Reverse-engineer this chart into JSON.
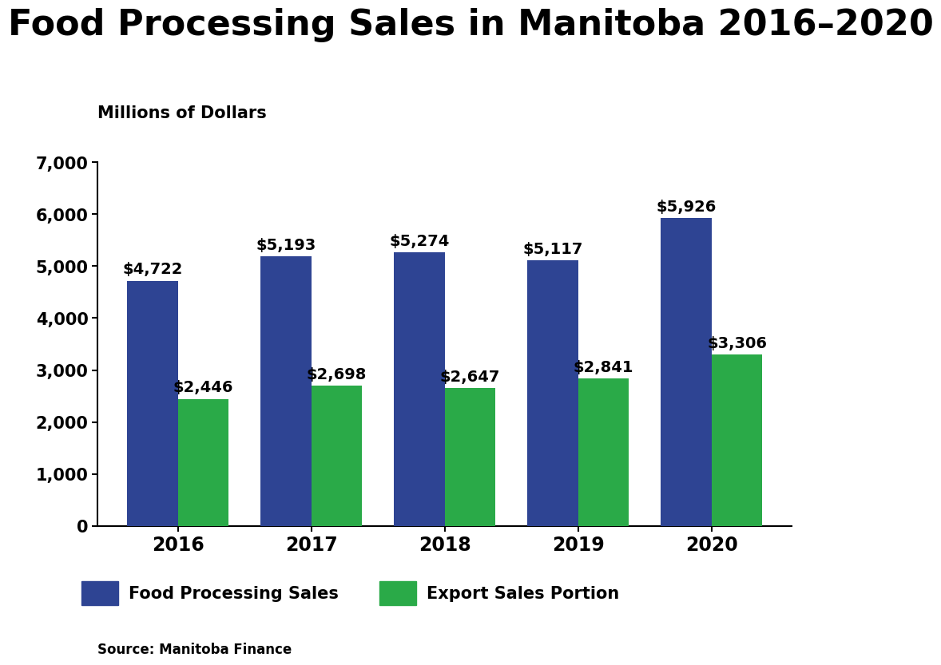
{
  "title": "Food Processing Sales in Manitoba 2016–2020",
  "subtitle": "Millions of Dollars",
  "years": [
    "2016",
    "2017",
    "2018",
    "2019",
    "2020"
  ],
  "food_processing_sales": [
    4722,
    5193,
    5274,
    5117,
    5926
  ],
  "export_sales": [
    2446,
    2698,
    2647,
    2841,
    3306
  ],
  "food_processing_labels": [
    "$4,722",
    "$5,193",
    "$5,274",
    "$5,117",
    "$5,926"
  ],
  "export_labels": [
    "$2,446",
    "$2,698",
    "$2,647",
    "$2,841",
    "$3,306"
  ],
  "bar_color_blue": "#2E4493",
  "bar_color_green": "#2AAA48",
  "ylim": [
    0,
    7000
  ],
  "yticks": [
    0,
    1000,
    2000,
    3000,
    4000,
    5000,
    6000,
    7000
  ],
  "legend_label_blue": "Food Processing Sales",
  "legend_label_green": "Export Sales Portion",
  "source_text": "Source: Manitoba Finance",
  "title_fontsize": 32,
  "subtitle_fontsize": 15,
  "tick_fontsize": 15,
  "label_fontsize": 14,
  "legend_fontsize": 15,
  "source_fontsize": 12,
  "bar_width": 0.38,
  "background_color": "#ffffff",
  "axis_color": "#000000"
}
